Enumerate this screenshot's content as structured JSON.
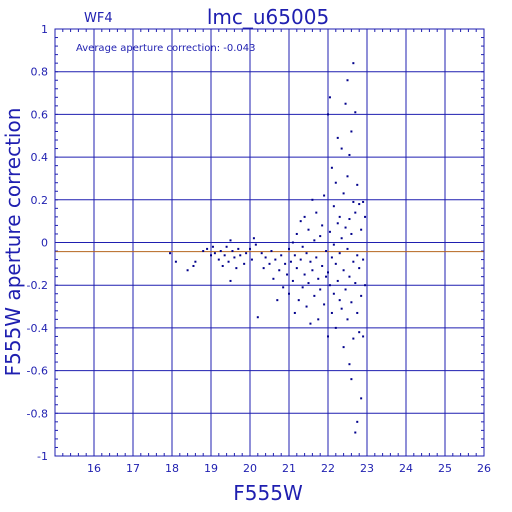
{
  "chart_data": {
    "type": "scatter",
    "title": "lmc_u65005",
    "chip_label": "WF4",
    "annotation": "Average aperture correction: -0.043",
    "xlabel": "F555W",
    "ylabel": "F555W aperture correction",
    "xlim": [
      15,
      26
    ],
    "ylim": [
      -1,
      1
    ],
    "x_ticks": [
      16,
      17,
      18,
      19,
      20,
      21,
      22,
      23,
      24,
      25,
      26
    ],
    "y_ticks": [
      -1,
      -0.8,
      -0.6,
      -0.4,
      -0.2,
      0,
      0.2,
      0.4,
      0.6,
      0.8,
      1
    ],
    "x_tick_labels": [
      "16",
      "17",
      "18",
      "19",
      "20",
      "21",
      "22",
      "23",
      "24",
      "25",
      "26"
    ],
    "y_tick_labels": [
      "-1",
      "-0.8",
      "-0.6",
      "-0.4",
      "-0.2",
      "0",
      "0.2",
      "0.4",
      "0.6",
      "0.8",
      "1"
    ],
    "grid": true,
    "reference_line": -0.043,
    "colors": {
      "axis": "#1f1fb0",
      "points": "#00008b",
      "reference_line": "#b5651d"
    },
    "points": [
      [
        17.95,
        -0.05
      ],
      [
        18.1,
        -0.09
      ],
      [
        18.4,
        -0.13
      ],
      [
        18.55,
        -0.11
      ],
      [
        18.6,
        -0.09
      ],
      [
        18.8,
        -0.04
      ],
      [
        18.9,
        -0.03
      ],
      [
        19.0,
        -0.06
      ],
      [
        19.05,
        -0.02
      ],
      [
        19.1,
        -0.05
      ],
      [
        19.2,
        -0.08
      ],
      [
        19.25,
        -0.04
      ],
      [
        19.3,
        -0.11
      ],
      [
        19.35,
        -0.06
      ],
      [
        19.4,
        -0.02
      ],
      [
        19.45,
        -0.09
      ],
      [
        19.5,
        0.01
      ],
      [
        19.5,
        -0.18
      ],
      [
        19.55,
        -0.04
      ],
      [
        19.6,
        -0.07
      ],
      [
        19.65,
        -0.12
      ],
      [
        19.7,
        -0.03
      ],
      [
        19.75,
        -0.06
      ],
      [
        19.85,
        -0.1
      ],
      [
        19.9,
        -0.05
      ],
      [
        20.0,
        -0.03
      ],
      [
        20.05,
        -0.08
      ],
      [
        20.1,
        0.02
      ],
      [
        20.15,
        -0.01
      ],
      [
        20.2,
        -0.35
      ],
      [
        20.3,
        -0.05
      ],
      [
        20.35,
        -0.12
      ],
      [
        20.4,
        -0.07
      ],
      [
        20.5,
        -0.1
      ],
      [
        20.55,
        -0.04
      ],
      [
        20.6,
        -0.17
      ],
      [
        20.65,
        -0.08
      ],
      [
        20.7,
        -0.27
      ],
      [
        20.75,
        -0.13
      ],
      [
        20.8,
        -0.06
      ],
      [
        20.85,
        -0.21
      ],
      [
        20.9,
        -0.1
      ],
      [
        20.95,
        -0.15
      ],
      [
        21.0,
        -0.03
      ],
      [
        21.0,
        -0.24
      ],
      [
        21.05,
        -0.09
      ],
      [
        21.1,
        0.0
      ],
      [
        21.1,
        -0.18
      ],
      [
        21.15,
        -0.06
      ],
      [
        21.15,
        -0.33
      ],
      [
        21.2,
        0.04
      ],
      [
        21.2,
        -0.12
      ],
      [
        21.25,
        -0.27
      ],
      [
        21.3,
        0.1
      ],
      [
        21.3,
        -0.08
      ],
      [
        21.35,
        -0.02
      ],
      [
        21.35,
        -0.21
      ],
      [
        21.4,
        0.12
      ],
      [
        21.4,
        -0.15
      ],
      [
        21.45,
        -0.05
      ],
      [
        21.45,
        -0.3
      ],
      [
        21.5,
        0.06
      ],
      [
        21.5,
        -0.19
      ],
      [
        21.55,
        -0.09
      ],
      [
        21.55,
        -0.38
      ],
      [
        21.6,
        0.2
      ],
      [
        21.6,
        -0.13
      ],
      [
        21.65,
        0.01
      ],
      [
        21.65,
        -0.25
      ],
      [
        21.7,
        0.14
      ],
      [
        21.7,
        -0.07
      ],
      [
        21.75,
        -0.17
      ],
      [
        21.75,
        -0.36
      ],
      [
        21.8,
        0.03
      ],
      [
        21.8,
        -0.22
      ],
      [
        21.85,
        0.08
      ],
      [
        21.85,
        -0.11
      ],
      [
        21.9,
        0.22
      ],
      [
        21.9,
        -0.29
      ],
      [
        21.95,
        -0.04
      ],
      [
        21.95,
        -0.16
      ],
      [
        22.0,
        0.6
      ],
      [
        22.0,
        -0.14
      ],
      [
        22.0,
        -0.44
      ],
      [
        22.05,
        0.68
      ],
      [
        22.05,
        0.05
      ],
      [
        22.05,
        -0.2
      ],
      [
        22.1,
        0.35
      ],
      [
        22.1,
        -0.07
      ],
      [
        22.1,
        -0.33
      ],
      [
        22.15,
        0.17
      ],
      [
        22.15,
        -0.01
      ],
      [
        22.15,
        -0.24
      ],
      [
        22.2,
        0.28
      ],
      [
        22.2,
        -0.1
      ],
      [
        22.2,
        -0.4
      ],
      [
        22.25,
        0.49
      ],
      [
        22.25,
        0.09
      ],
      [
        22.25,
        -0.18
      ],
      [
        22.3,
        0.12
      ],
      [
        22.3,
        -0.05
      ],
      [
        22.3,
        -0.27
      ],
      [
        22.35,
        0.44
      ],
      [
        22.35,
        0.02
      ],
      [
        22.35,
        -0.31
      ],
      [
        22.4,
        0.23
      ],
      [
        22.4,
        -0.13
      ],
      [
        22.4,
        -0.49
      ],
      [
        22.45,
        0.65
      ],
      [
        22.45,
        0.07
      ],
      [
        22.45,
        -0.22
      ],
      [
        22.5,
        0.76
      ],
      [
        22.5,
        0.31
      ],
      [
        22.5,
        -0.03
      ],
      [
        22.5,
        -0.36
      ],
      [
        22.55,
        0.41
      ],
      [
        22.55,
        0.11
      ],
      [
        22.55,
        -0.16
      ],
      [
        22.55,
        -0.57
      ],
      [
        22.6,
        0.52
      ],
      [
        22.6,
        0.04
      ],
      [
        22.6,
        -0.28
      ],
      [
        22.6,
        -0.64
      ],
      [
        22.65,
        0.84
      ],
      [
        22.65,
        0.19
      ],
      [
        22.65,
        -0.09
      ],
      [
        22.65,
        -0.45
      ],
      [
        22.7,
        0.61
      ],
      [
        22.7,
        0.14
      ],
      [
        22.7,
        -0.19
      ],
      [
        22.7,
        -0.89
      ],
      [
        22.75,
        0.27
      ],
      [
        22.75,
        -0.06
      ],
      [
        22.75,
        -0.33
      ],
      [
        22.75,
        -0.84
      ],
      [
        22.8,
        0.18
      ],
      [
        22.8,
        -0.12
      ],
      [
        22.8,
        -0.42
      ],
      [
        22.85,
        0.06
      ],
      [
        22.85,
        -0.25
      ],
      [
        22.85,
        -0.73
      ],
      [
        22.9,
        0.19
      ],
      [
        22.9,
        -0.08
      ],
      [
        22.9,
        -0.44
      ],
      [
        22.95,
        0.12
      ],
      [
        22.95,
        -0.2
      ]
    ]
  }
}
